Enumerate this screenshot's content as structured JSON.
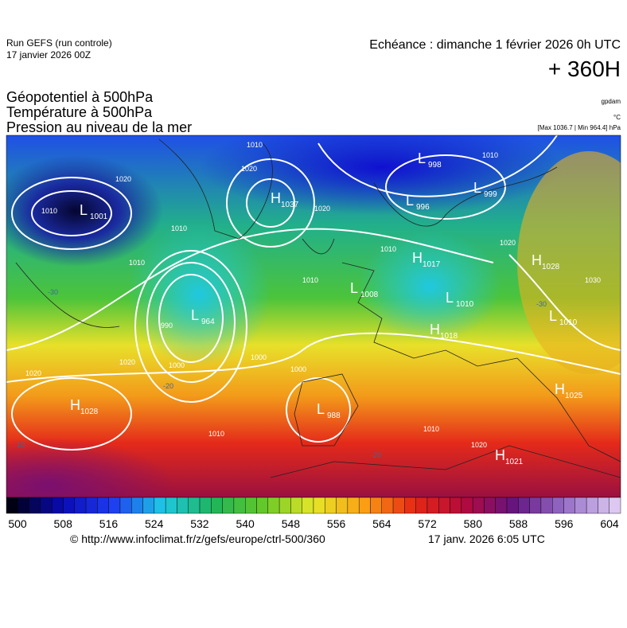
{
  "header": {
    "run": "Run GEFS (run controle)",
    "run_date": "17 janvier 2026 00Z",
    "valid": "Echéance : dimanche 1 février 2026 0h UTC",
    "lead": "+ 360H",
    "fields": [
      "Géopotentiel à 500hPa",
      "Température à 500hPa",
      "Pression au niveau de la mer"
    ],
    "unit_geo": "gpdam",
    "unit_temp": "°C",
    "extremes": "[Max 1036.7 | Min 964.4] hPa"
  },
  "centers": [
    {
      "kind": "L",
      "value": "1001"
    },
    {
      "kind": "H",
      "value": "1037"
    },
    {
      "kind": "L",
      "value": "998"
    },
    {
      "kind": "L",
      "value": "999"
    },
    {
      "kind": "L",
      "value": "996"
    },
    {
      "kind": "H",
      "value": "1028"
    },
    {
      "kind": "H",
      "value": "1017"
    },
    {
      "kind": "L",
      "value": "1008"
    },
    {
      "kind": "L",
      "value": "1010"
    },
    {
      "kind": "L",
      "value": "964"
    },
    {
      "kind": "H",
      "value": "1018"
    },
    {
      "kind": "L",
      "value": "1010"
    },
    {
      "kind": "H",
      "value": "1028"
    },
    {
      "kind": "L",
      "value": "988"
    },
    {
      "kind": "H",
      "value": "1025"
    },
    {
      "kind": "H",
      "value": "1021"
    }
  ],
  "isobar_labels": [
    "1010",
    "1020",
    "1010",
    "1020",
    "1020",
    "1010",
    "1010",
    "1010",
    "1010",
    "1020",
    "1010",
    "1030",
    "990",
    "1000",
    "1000",
    "1020",
    "1020",
    "1000",
    "1010",
    "1010",
    "1020"
  ],
  "temperature_labels": [
    "-30",
    "-20",
    "-10",
    "-20",
    "-30"
  ],
  "colorbar": {
    "labels": [
      "500",
      "508",
      "516",
      "524",
      "532",
      "540",
      "548",
      "556",
      "564",
      "572",
      "580",
      "588",
      "596",
      "604"
    ]
  },
  "footer": {
    "source": "© http://www.infoclimat.fr/z/gefs/europe/ctrl-500/360",
    "generated": "17 janv. 2026  6:05 UTC"
  }
}
